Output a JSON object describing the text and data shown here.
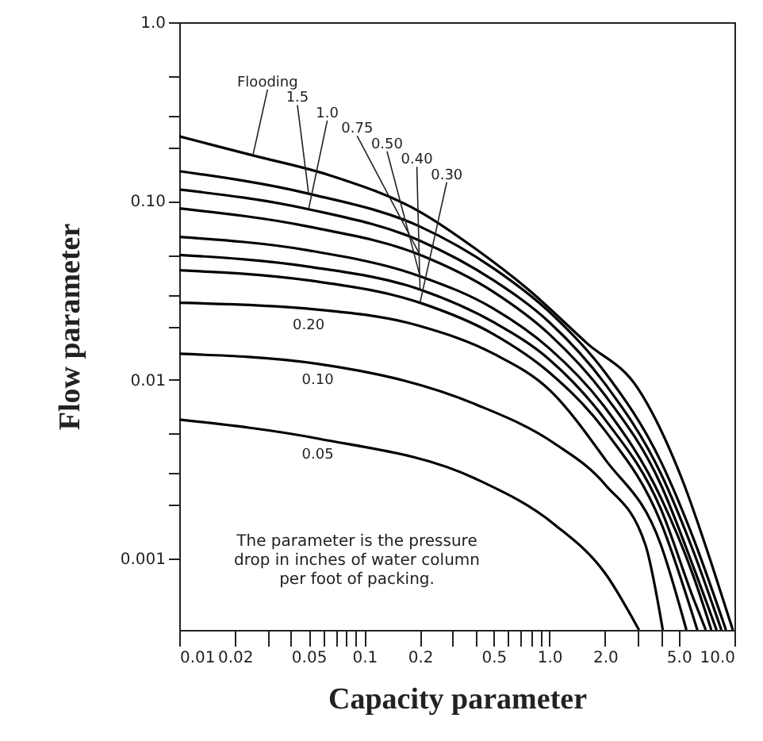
{
  "chart_data": {
    "type": "line",
    "xlabel": "Capacity parameter",
    "ylabel": "Flow parameter",
    "log": "xy",
    "xlim": [
      0.01,
      10
    ],
    "ylim": [
      0.0004,
      1
    ],
    "xticks": [
      0.01,
      0.02,
      {
        "value": 0.03,
        "label": null
      },
      {
        "value": 0.04,
        "label": null
      },
      0.05,
      {
        "value": 0.06,
        "label": null
      },
      {
        "value": 0.07,
        "label": null
      },
      {
        "value": 0.08,
        "label": null
      },
      {
        "value": 0.09,
        "label": null
      },
      0.1,
      0.2,
      {
        "value": 0.3,
        "label": null
      },
      {
        "value": 0.4,
        "label": null
      },
      0.5,
      {
        "value": 0.6,
        "label": null
      },
      {
        "value": 0.7,
        "label": null
      },
      {
        "value": 0.8,
        "label": null
      },
      {
        "value": 0.9,
        "label": null
      },
      {
        "value": 1,
        "label": "1.0"
      },
      {
        "value": 2,
        "label": "2.0"
      },
      {
        "value": 3,
        "label": null
      },
      {
        "value": 4,
        "label": null
      },
      {
        "value": 5,
        "label": "5.0"
      },
      {
        "value": 10,
        "label": "10.0"
      }
    ],
    "yticks": [
      0.001,
      {
        "value": 0.002,
        "label": null
      },
      {
        "value": 0.003,
        "label": null
      },
      {
        "value": 0.005,
        "label": null
      },
      0.01,
      {
        "value": 0.02,
        "label": null
      },
      {
        "value": 0.03,
        "label": null
      },
      {
        "value": 0.05,
        "label": null
      },
      {
        "value": 0.1,
        "label": "0.10"
      },
      {
        "value": 0.2,
        "label": null
      },
      {
        "value": 0.3,
        "label": null
      },
      {
        "value": 0.5,
        "label": null
      },
      {
        "value": 1,
        "label": "1.0"
      }
    ],
    "grid": false,
    "marker": "none",
    "line_style": "solid",
    "annotations": [
      "The parameter is the pressure drop in inches of water column per foot of packing."
    ],
    "series": [
      {
        "name": "Flooding",
        "color": "#000000",
        "x": [
          0.01,
          0.025,
          0.064,
          0.2,
          0.4,
          0.77,
          1.6,
          3,
          5.2,
          7.7,
          9.8
        ],
        "values": [
          0.23,
          0.18,
          0.14,
          0.087,
          0.054,
          0.032,
          0.016,
          0.009,
          0.0028,
          0.00087,
          0.0004
        ]
      },
      {
        "name": "1.5",
        "color": "#000000",
        "x": [
          0.01,
          0.05,
          0.2,
          0.5,
          1,
          2,
          4,
          6,
          9
        ],
        "values": [
          0.147,
          0.11,
          0.072,
          0.042,
          0.024,
          0.011,
          0.0035,
          0.0013,
          0.0004
        ]
      },
      {
        "name": "1.0",
        "color": "#000000",
        "x": [
          0.01,
          0.05,
          0.2,
          0.5,
          1,
          2,
          4,
          6,
          8.5
        ],
        "values": [
          0.116,
          0.09,
          0.06,
          0.036,
          0.021,
          0.0095,
          0.003,
          0.0011,
          0.0004
        ]
      },
      {
        "name": "0.75",
        "color": "#000000",
        "x": [
          0.01,
          0.05,
          0.2,
          0.5,
          1,
          2,
          4,
          6,
          8
        ],
        "values": [
          0.091,
          0.072,
          0.05,
          0.031,
          0.018,
          0.0082,
          0.0026,
          0.0009,
          0.0004
        ]
      },
      {
        "name": "0.50",
        "color": "#000000",
        "x": [
          0.01,
          0.05,
          0.2,
          0.5,
          1,
          2,
          4,
          6,
          7.5
        ],
        "values": [
          0.063,
          0.053,
          0.038,
          0.025,
          0.015,
          0.007,
          0.0022,
          0.0008,
          0.0004
        ]
      },
      {
        "name": "0.40",
        "color": "#000000",
        "x": [
          0.01,
          0.05,
          0.2,
          0.5,
          1,
          2,
          4,
          6,
          7
        ],
        "values": [
          0.05,
          0.043,
          0.032,
          0.021,
          0.013,
          0.006,
          0.0019,
          0.0006,
          0.0004
        ]
      },
      {
        "name": "0.30",
        "color": "#000000",
        "x": [
          0.01,
          0.05,
          0.2,
          0.5,
          1,
          2,
          4,
          6.3
        ],
        "values": [
          0.041,
          0.036,
          0.027,
          0.018,
          0.011,
          0.0052,
          0.0016,
          0.0004
        ]
      },
      {
        "name": "0.20",
        "color": "#000000",
        "x": [
          0.01,
          0.05,
          0.2,
          0.5,
          1,
          2,
          4,
          5.5
        ],
        "values": [
          0.027,
          0.025,
          0.02,
          0.014,
          0.0088,
          0.0036,
          0.0012,
          0.0004
        ]
      },
      {
        "name": "0.10",
        "color": "#000000",
        "x": [
          0.01,
          0.056,
          0.4,
          1.07,
          2,
          3.3,
          4.1
        ],
        "values": [
          0.014,
          0.0123,
          0.0073,
          0.0044,
          0.0026,
          0.0012,
          0.0004
        ]
      },
      {
        "name": "0.05",
        "color": "#000000",
        "x": [
          0.01,
          0.056,
          0.4,
          1.07,
          2,
          3.05
        ],
        "values": [
          0.006,
          0.0047,
          0.0028,
          0.00155,
          0.00083,
          0.0004
        ]
      }
    ]
  }
}
